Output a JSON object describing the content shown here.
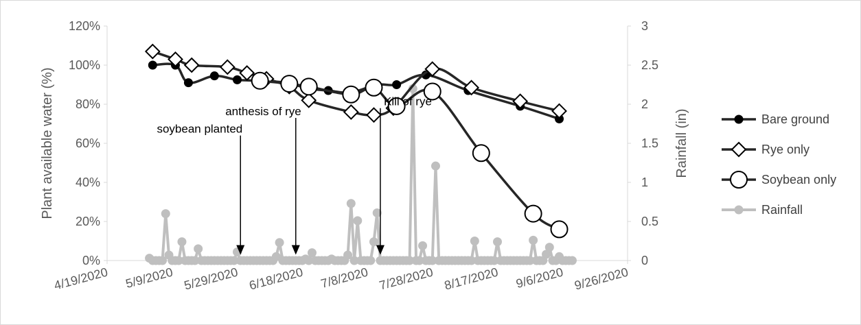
{
  "chart_data": {
    "type": "line",
    "title": "",
    "xlabel": "",
    "ylabel": "Plant available water (%)",
    "y2label": "Rainfall (in)",
    "xlim": [
      "2020-04-19",
      "2020-09-26"
    ],
    "x_ticks": [
      "4/19/2020",
      "5/9/2020",
      "5/29/2020",
      "6/18/2020",
      "7/8/2020",
      "7/28/2020",
      "8/17/2020",
      "9/6/2020",
      "9/26/2020"
    ],
    "ylim": [
      0,
      120
    ],
    "y_ticks": [
      "0%",
      "20%",
      "40%",
      "60%",
      "80%",
      "100%",
      "120%"
    ],
    "y2lim": [
      0,
      3
    ],
    "y2_ticks": [
      "0",
      "0.5",
      "1",
      "1.5",
      "2",
      "2.5",
      "3"
    ],
    "grid": false,
    "legend_position": "right",
    "series": [
      {
        "name": "Bare ground",
        "axis": "left",
        "marker": "filled-circle",
        "color": "#262626",
        "points": [
          [
            "2020-05-03",
            100
          ],
          [
            "2020-05-10",
            100
          ],
          [
            "2020-05-14",
            91
          ],
          [
            "2020-05-22",
            94.5
          ],
          [
            "2020-05-29",
            92.5
          ],
          [
            "2020-06-05",
            92
          ],
          [
            "2020-06-13",
            91
          ],
          [
            "2020-06-20",
            88
          ],
          [
            "2020-06-26",
            87
          ],
          [
            "2020-07-03",
            86
          ],
          [
            "2020-07-11",
            90
          ],
          [
            "2020-07-17",
            90
          ],
          [
            "2020-07-26",
            95
          ],
          [
            "2020-08-08",
            87
          ],
          [
            "2020-08-24",
            79
          ],
          [
            "2020-09-05",
            72.5
          ]
        ]
      },
      {
        "name": "Rye only",
        "axis": "left",
        "marker": "open-diamond",
        "color": "#262626",
        "points": [
          [
            "2020-05-03",
            107
          ],
          [
            "2020-05-10",
            103
          ],
          [
            "2020-05-15",
            100
          ],
          [
            "2020-05-26",
            99
          ],
          [
            "2020-06-01",
            96
          ],
          [
            "2020-06-07",
            93
          ],
          [
            "2020-06-14",
            89
          ],
          [
            "2020-06-20",
            82
          ],
          [
            "2020-07-03",
            76
          ],
          [
            "2020-07-10",
            74.5
          ],
          [
            "2020-07-16",
            78
          ],
          [
            "2020-07-28",
            98
          ],
          [
            "2020-08-09",
            88.5
          ],
          [
            "2020-08-24",
            81.5
          ],
          [
            "2020-09-05",
            76.5
          ]
        ]
      },
      {
        "name": "Soybean only",
        "axis": "left",
        "marker": "open-circle",
        "color": "#262626",
        "points": [
          [
            "2020-06-05",
            92
          ],
          [
            "2020-06-14",
            90.5
          ],
          [
            "2020-06-20",
            89
          ],
          [
            "2020-07-03",
            85
          ],
          [
            "2020-07-10",
            88.5
          ],
          [
            "2020-07-17",
            79
          ],
          [
            "2020-07-28",
            86.5
          ],
          [
            "2020-08-12",
            55
          ],
          [
            "2020-08-28",
            24
          ],
          [
            "2020-09-05",
            16
          ]
        ]
      },
      {
        "name": "Rainfall",
        "axis": "right",
        "marker": "gray-circle",
        "color": "#bfbfbf",
        "points": [
          [
            "2020-05-02",
            0.03
          ],
          [
            "2020-05-03",
            0.0
          ],
          [
            "2020-05-04",
            0.0
          ],
          [
            "2020-05-05",
            0.0
          ],
          [
            "2020-05-06",
            0.0
          ],
          [
            "2020-05-07",
            0.6
          ],
          [
            "2020-05-08",
            0.07
          ],
          [
            "2020-05-09",
            0.0
          ],
          [
            "2020-05-10",
            0.0
          ],
          [
            "2020-05-11",
            0.0
          ],
          [
            "2020-05-12",
            0.24
          ],
          [
            "2020-05-13",
            0.0
          ],
          [
            "2020-05-14",
            0.0
          ],
          [
            "2020-05-15",
            0.0
          ],
          [
            "2020-05-16",
            0.0
          ],
          [
            "2020-05-17",
            0.15
          ],
          [
            "2020-05-18",
            0.0
          ],
          [
            "2020-05-19",
            0.0
          ],
          [
            "2020-05-20",
            0.0
          ],
          [
            "2020-05-21",
            0.0
          ],
          [
            "2020-05-22",
            0.0
          ],
          [
            "2020-05-23",
            0.0
          ],
          [
            "2020-05-24",
            0.0
          ],
          [
            "2020-05-25",
            0.0
          ],
          [
            "2020-05-26",
            0.0
          ],
          [
            "2020-05-27",
            0.0
          ],
          [
            "2020-05-28",
            0.0
          ],
          [
            "2020-05-29",
            0.11
          ],
          [
            "2020-05-30",
            0.0
          ],
          [
            "2020-05-31",
            0.0
          ],
          [
            "2020-06-01",
            0.0
          ],
          [
            "2020-06-02",
            0.0
          ],
          [
            "2020-06-03",
            0.0
          ],
          [
            "2020-06-04",
            0.0
          ],
          [
            "2020-06-05",
            0.0
          ],
          [
            "2020-06-06",
            0.0
          ],
          [
            "2020-06-07",
            0.0
          ],
          [
            "2020-06-08",
            0.0
          ],
          [
            "2020-06-09",
            0.0
          ],
          [
            "2020-06-10",
            0.05
          ],
          [
            "2020-06-11",
            0.23
          ],
          [
            "2020-06-12",
            0.0
          ],
          [
            "2020-06-13",
            0.0
          ],
          [
            "2020-06-14",
            0.0
          ],
          [
            "2020-06-15",
            0.0
          ],
          [
            "2020-06-16",
            0.0
          ],
          [
            "2020-06-17",
            0.0
          ],
          [
            "2020-06-18",
            0.0
          ],
          [
            "2020-06-19",
            0.02
          ],
          [
            "2020-06-20",
            0.0
          ],
          [
            "2020-06-21",
            0.1
          ],
          [
            "2020-06-22",
            0.0
          ],
          [
            "2020-06-23",
            0.0
          ],
          [
            "2020-06-24",
            0.0
          ],
          [
            "2020-06-25",
            0.0
          ],
          [
            "2020-06-26",
            0.0
          ],
          [
            "2020-06-27",
            0.02
          ],
          [
            "2020-06-28",
            0.0
          ],
          [
            "2020-06-29",
            0.0
          ],
          [
            "2020-06-30",
            0.0
          ],
          [
            "2020-07-01",
            0.0
          ],
          [
            "2020-07-02",
            0.07
          ],
          [
            "2020-07-03",
            0.73
          ],
          [
            "2020-07-04",
            0.0
          ],
          [
            "2020-07-05",
            0.51
          ],
          [
            "2020-07-06",
            0.0
          ],
          [
            "2020-07-07",
            0.0
          ],
          [
            "2020-07-08",
            0.0
          ],
          [
            "2020-07-09",
            0.0
          ],
          [
            "2020-07-10",
            0.24
          ],
          [
            "2020-07-11",
            0.61
          ],
          [
            "2020-07-12",
            0.0
          ],
          [
            "2020-07-13",
            0.0
          ],
          [
            "2020-07-14",
            0.0
          ],
          [
            "2020-07-15",
            0.0
          ],
          [
            "2020-07-16",
            0.0
          ],
          [
            "2020-07-17",
            0.0
          ],
          [
            "2020-07-18",
            0.0
          ],
          [
            "2020-07-19",
            0.0
          ],
          [
            "2020-07-20",
            0.0
          ],
          [
            "2020-07-21",
            0.0
          ],
          [
            "2020-07-22",
            2.2
          ],
          [
            "2020-07-23",
            0.0
          ],
          [
            "2020-07-24",
            0.0
          ],
          [
            "2020-07-25",
            0.19
          ],
          [
            "2020-07-26",
            0.0
          ],
          [
            "2020-07-27",
            0.0
          ],
          [
            "2020-07-28",
            0.0
          ],
          [
            "2020-07-29",
            1.21
          ],
          [
            "2020-07-30",
            0.0
          ],
          [
            "2020-07-31",
            0.0
          ],
          [
            "2020-08-01",
            0.0
          ],
          [
            "2020-08-02",
            0.0
          ],
          [
            "2020-08-03",
            0.0
          ],
          [
            "2020-08-04",
            0.0
          ],
          [
            "2020-08-05",
            0.0
          ],
          [
            "2020-08-06",
            0.0
          ],
          [
            "2020-08-07",
            0.0
          ],
          [
            "2020-08-08",
            0.0
          ],
          [
            "2020-08-09",
            0.0
          ],
          [
            "2020-08-10",
            0.25
          ],
          [
            "2020-08-11",
            0.0
          ],
          [
            "2020-08-12",
            0.0
          ],
          [
            "2020-08-13",
            0.0
          ],
          [
            "2020-08-14",
            0.0
          ],
          [
            "2020-08-15",
            0.0
          ],
          [
            "2020-08-16",
            0.0
          ],
          [
            "2020-08-17",
            0.24
          ],
          [
            "2020-08-18",
            0.0
          ],
          [
            "2020-08-19",
            0.0
          ],
          [
            "2020-08-20",
            0.0
          ],
          [
            "2020-08-21",
            0.0
          ],
          [
            "2020-08-22",
            0.0
          ],
          [
            "2020-08-23",
            0.0
          ],
          [
            "2020-08-24",
            0.0
          ],
          [
            "2020-08-25",
            0.0
          ],
          [
            "2020-08-26",
            0.0
          ],
          [
            "2020-08-27",
            0.0
          ],
          [
            "2020-08-28",
            0.26
          ],
          [
            "2020-08-29",
            0.0
          ],
          [
            "2020-08-30",
            0.0
          ],
          [
            "2020-08-31",
            0.0
          ],
          [
            "2020-09-01",
            0.08
          ],
          [
            "2020-09-02",
            0.17
          ],
          [
            "2020-09-03",
            0.0
          ],
          [
            "2020-09-04",
            0.0
          ],
          [
            "2020-09-05",
            0.05
          ],
          [
            "2020-09-06",
            0.0
          ],
          [
            "2020-09-07",
            0.0
          ],
          [
            "2020-09-08",
            0.0
          ],
          [
            "2020-09-09",
            0.0
          ]
        ]
      }
    ],
    "annotations": [
      {
        "text": "soybean planted",
        "date": "2020-05-30",
        "arrow_top_value": 64,
        "arrow_tip_value": 3
      },
      {
        "text": "anthesis of rye",
        "date": "2020-06-16",
        "arrow_top_value": 73,
        "arrow_tip_value": 3
      },
      {
        "text": "Kill of rye",
        "date": "2020-07-12",
        "arrow_top_value": 78,
        "arrow_tip_value": 3
      }
    ]
  }
}
